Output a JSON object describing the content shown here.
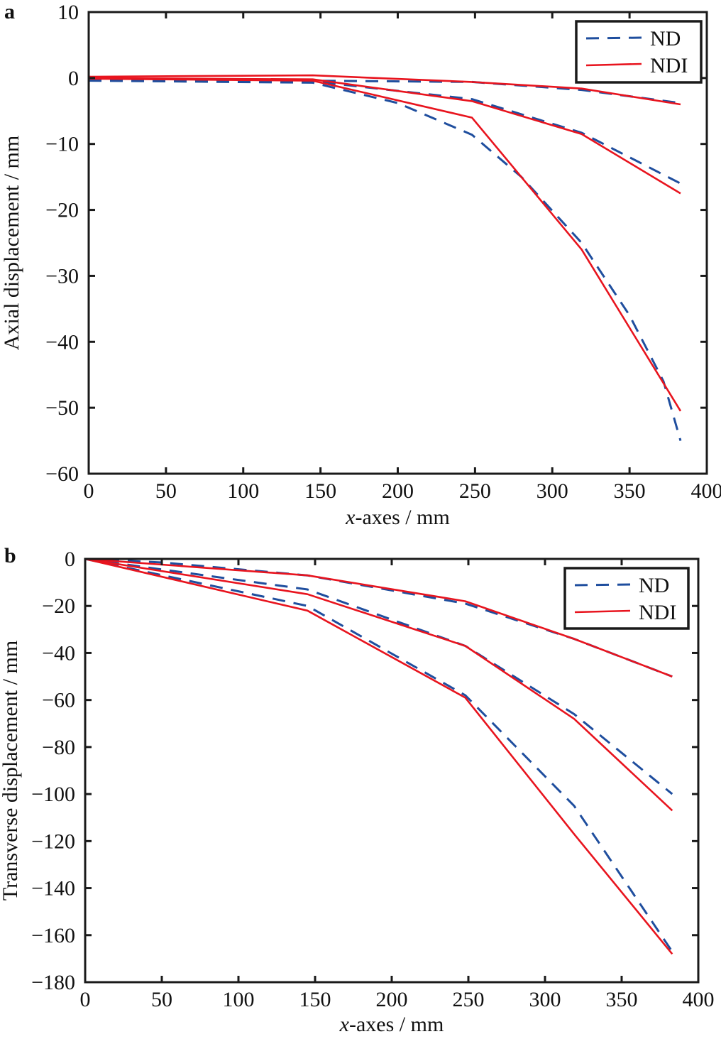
{
  "colors": {
    "ND": "#1f4e9e",
    "NDI": "#e8141e",
    "axis": "#1a1a1a"
  },
  "chart_data": [
    {
      "panel_label": "a",
      "type": "line",
      "xlabel_italic": "x",
      "xlabel_rest": "-axes / mm",
      "ylabel": "Axial displacement / mm",
      "xlim": [
        0,
        400
      ],
      "ylim": [
        -60,
        10
      ],
      "xticks": [
        0,
        50,
        100,
        150,
        200,
        250,
        300,
        350,
        400
      ],
      "yticks": [
        10,
        0,
        -10,
        -20,
        -30,
        -40,
        -50,
        -60
      ],
      "ytick_labels": [
        "10",
        "0",
        "−10",
        "−20",
        "−30",
        "−40",
        "−50",
        "−60"
      ],
      "grid": false,
      "legend_position": "top-right",
      "legend": [
        "ND",
        "NDI"
      ],
      "series": [
        {
          "name": "ND",
          "style": "dashed",
          "points": [
            [
              0,
              -0.2
            ],
            [
              145,
              -0.4
            ],
            [
              248,
              -0.6
            ],
            [
              319,
              -1.8
            ],
            [
              383,
              -3.8
            ]
          ]
        },
        {
          "name": "ND",
          "style": "dashed",
          "points": [
            [
              0,
              -0.3
            ],
            [
              145,
              -0.5
            ],
            [
              248,
              -3.2
            ],
            [
              319,
              -8.3
            ],
            [
              383,
              -16
            ]
          ]
        },
        {
          "name": "ND",
          "style": "dashed",
          "points": [
            [
              0,
              -0.4
            ],
            [
              145,
              -0.7
            ],
            [
              200,
              -3.8
            ],
            [
              248,
              -8.6
            ],
            [
              280,
              -15
            ],
            [
              319,
              -25
            ],
            [
              350,
              -36
            ],
            [
              372,
              -46
            ],
            [
              383,
              -55
            ]
          ]
        },
        {
          "name": "NDI",
          "style": "solid",
          "points": [
            [
              0,
              0.2
            ],
            [
              145,
              0.4
            ],
            [
              248,
              -0.6
            ],
            [
              319,
              -1.6
            ],
            [
              383,
              -4.0
            ]
          ]
        },
        {
          "name": "NDI",
          "style": "solid",
          "points": [
            [
              0,
              0
            ],
            [
              145,
              -0.2
            ],
            [
              248,
              -3.5
            ],
            [
              319,
              -8.5
            ],
            [
              383,
              -17.5
            ]
          ]
        },
        {
          "name": "NDI",
          "style": "solid",
          "points": [
            [
              0,
              -0.1
            ],
            [
              145,
              -0.4
            ],
            [
              248,
              -6
            ],
            [
              319,
              -26
            ],
            [
              383,
              -50.5
            ]
          ]
        }
      ]
    },
    {
      "panel_label": "b",
      "type": "line",
      "xlabel_italic": "x",
      "xlabel_rest": "-axes / mm",
      "ylabel": "Transverse displacement / mm",
      "xlim": [
        0,
        400
      ],
      "ylim": [
        -180,
        0
      ],
      "xticks": [
        0,
        50,
        100,
        150,
        200,
        250,
        300,
        350,
        400
      ],
      "yticks": [
        0,
        -20,
        -40,
        -60,
        -80,
        -100,
        -120,
        -140,
        -160,
        -180
      ],
      "ytick_labels": [
        "0",
        "−20",
        "−40",
        "−60",
        "−80",
        "−100",
        "−120",
        "−140",
        "−160",
        "−180"
      ],
      "grid": false,
      "legend_position": "top-right",
      "legend": [
        "ND",
        "NDI"
      ],
      "series": [
        {
          "name": "ND",
          "style": "dashed",
          "points": [
            [
              0,
              0
            ],
            [
              50,
              -1.5
            ],
            [
              145,
              -7
            ],
            [
              248,
              -19
            ],
            [
              319,
              -34
            ],
            [
              383,
              -50
            ]
          ]
        },
        {
          "name": "ND",
          "style": "dashed",
          "points": [
            [
              0,
              0
            ],
            [
              145,
              -13
            ],
            [
              248,
              -37
            ],
            [
              319,
              -66
            ],
            [
              383,
              -100
            ]
          ]
        },
        {
          "name": "ND",
          "style": "dashed",
          "points": [
            [
              0,
              0
            ],
            [
              145,
              -20
            ],
            [
              248,
              -58
            ],
            [
              319,
              -105
            ],
            [
              383,
              -167
            ]
          ]
        },
        {
          "name": "NDI",
          "style": "solid",
          "points": [
            [
              0,
              0
            ],
            [
              145,
              -7
            ],
            [
              248,
              -18
            ],
            [
              319,
              -34
            ],
            [
              383,
              -50
            ]
          ]
        },
        {
          "name": "NDI",
          "style": "solid",
          "points": [
            [
              0,
              0
            ],
            [
              145,
              -15
            ],
            [
              248,
              -37
            ],
            [
              319,
              -68
            ],
            [
              383,
              -107
            ]
          ]
        },
        {
          "name": "NDI",
          "style": "solid",
          "points": [
            [
              0,
              0
            ],
            [
              145,
              -22
            ],
            [
              248,
              -59
            ],
            [
              319,
              -117
            ],
            [
              383,
              -168
            ]
          ]
        }
      ]
    }
  ]
}
